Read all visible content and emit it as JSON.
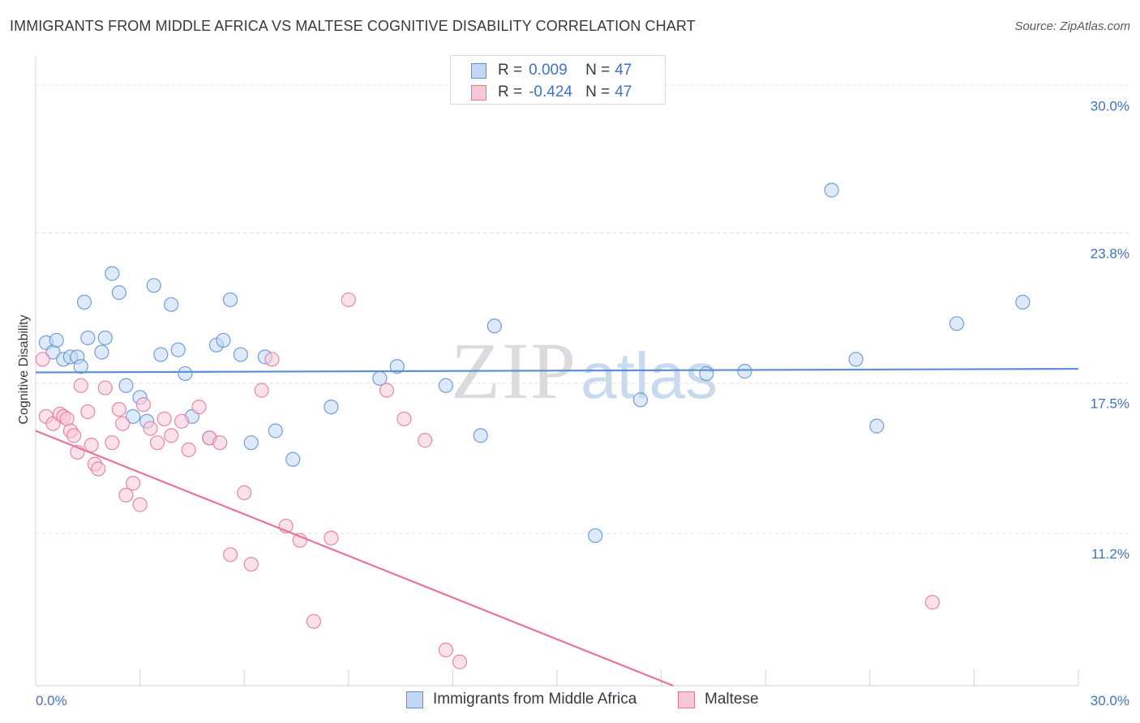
{
  "title": "IMMIGRANTS FROM MIDDLE AFRICA VS MALTESE COGNITIVE DISABILITY CORRELATION CHART",
  "source": "Source: ZipAtlas.com",
  "watermark": {
    "zip": "ZIP",
    "atlas": "atlas"
  },
  "legend_top": {
    "rows": [
      {
        "r_label": "R =",
        "r_value": "0.009",
        "n_label": "N =",
        "n_value": "47",
        "color": "#5b8fd6",
        "fill": "#c3d8f4"
      },
      {
        "r_label": "R =",
        "r_value": "-0.424",
        "n_label": "N =",
        "n_value": "47",
        "color": "#e8739b",
        "fill": "#f8c8d7"
      }
    ]
  },
  "legend_bottom": {
    "items": [
      {
        "label": "Immigrants from Middle Africa",
        "color": "#5b8fd6",
        "fill": "#c3d8f4"
      },
      {
        "label": "Maltese",
        "color": "#e8739b",
        "fill": "#f8c8d7"
      }
    ]
  },
  "chart_data": {
    "type": "scatter",
    "title": "IMMIGRANTS FROM MIDDLE AFRICA VS MALTESE COGNITIVE DISABILITY CORRELATION CHART",
    "xlabel": "",
    "ylabel": "Cognitive Disability",
    "xlim": [
      0,
      30
    ],
    "ylim": [
      4.8,
      31.2
    ],
    "x_tick_labels": [
      "0.0%",
      "30.0%"
    ],
    "y_ticks": [
      11.2,
      17.5,
      23.8,
      30.0
    ],
    "y_tick_labels": [
      "11.2%",
      "17.5%",
      "23.8%",
      "30.0%"
    ],
    "grid": "horizontal dashed",
    "legend_position": "top-center",
    "series": [
      {
        "name": "Immigrants from Middle Africa",
        "color": "#5b8fd6",
        "fill": "#c3d8f4",
        "trend": {
          "x": [
            0,
            30
          ],
          "y": [
            17.95,
            18.1
          ]
        },
        "points": [
          [
            0.3,
            19.2
          ],
          [
            0.5,
            18.8
          ],
          [
            0.6,
            19.3
          ],
          [
            0.8,
            18.5
          ],
          [
            1.0,
            18.6
          ],
          [
            1.2,
            18.6
          ],
          [
            1.3,
            18.2
          ],
          [
            1.4,
            20.9
          ],
          [
            1.5,
            19.4
          ],
          [
            1.9,
            18.8
          ],
          [
            2.0,
            19.4
          ],
          [
            2.2,
            22.1
          ],
          [
            2.4,
            21.3
          ],
          [
            2.6,
            17.4
          ],
          [
            2.8,
            16.1
          ],
          [
            3.0,
            16.9
          ],
          [
            3.2,
            15.9
          ],
          [
            3.4,
            21.6
          ],
          [
            3.6,
            18.7
          ],
          [
            3.9,
            20.8
          ],
          [
            4.1,
            18.9
          ],
          [
            4.3,
            17.9
          ],
          [
            4.5,
            16.1
          ],
          [
            5.0,
            15.2
          ],
          [
            5.2,
            19.1
          ],
          [
            5.4,
            19.3
          ],
          [
            5.6,
            21.0
          ],
          [
            5.9,
            18.7
          ],
          [
            6.2,
            15.0
          ],
          [
            6.6,
            18.6
          ],
          [
            6.9,
            15.5
          ],
          [
            7.4,
            14.3
          ],
          [
            8.5,
            16.5
          ],
          [
            9.9,
            17.7
          ],
          [
            10.4,
            18.2
          ],
          [
            11.8,
            17.4
          ],
          [
            12.8,
            15.3
          ],
          [
            13.2,
            19.9
          ],
          [
            16.1,
            11.1
          ],
          [
            17.4,
            16.8
          ],
          [
            19.3,
            17.9
          ],
          [
            20.4,
            18.0
          ],
          [
            22.9,
            25.6
          ],
          [
            23.6,
            18.5
          ],
          [
            24.2,
            15.7
          ],
          [
            26.5,
            20.0
          ],
          [
            28.4,
            20.9
          ]
        ]
      },
      {
        "name": "Maltese",
        "color": "#e8739b",
        "fill": "#f8c8d7",
        "trend": {
          "x": [
            0,
            30
          ],
          "y": [
            15.5,
            -2.0
          ]
        },
        "points": [
          [
            0.2,
            18.5
          ],
          [
            0.3,
            16.1
          ],
          [
            0.5,
            15.8
          ],
          [
            0.7,
            16.2
          ],
          [
            0.8,
            16.1
          ],
          [
            0.9,
            16.0
          ],
          [
            1.0,
            15.5
          ],
          [
            1.1,
            15.3
          ],
          [
            1.2,
            14.6
          ],
          [
            1.3,
            17.4
          ],
          [
            1.5,
            16.3
          ],
          [
            1.6,
            14.9
          ],
          [
            1.7,
            14.1
          ],
          [
            1.8,
            13.9
          ],
          [
            2.0,
            17.3
          ],
          [
            2.2,
            15.0
          ],
          [
            2.4,
            16.4
          ],
          [
            2.5,
            15.8
          ],
          [
            2.6,
            12.8
          ],
          [
            2.8,
            13.3
          ],
          [
            3.0,
            12.4
          ],
          [
            3.1,
            16.6
          ],
          [
            3.3,
            15.6
          ],
          [
            3.5,
            15.0
          ],
          [
            3.7,
            16.0
          ],
          [
            3.9,
            15.3
          ],
          [
            4.2,
            15.9
          ],
          [
            4.4,
            14.7
          ],
          [
            4.7,
            16.5
          ],
          [
            5.0,
            15.2
          ],
          [
            5.3,
            15.0
          ],
          [
            5.6,
            10.3
          ],
          [
            6.0,
            12.9
          ],
          [
            6.2,
            9.9
          ],
          [
            6.5,
            17.2
          ],
          [
            6.8,
            18.5
          ],
          [
            7.2,
            11.5
          ],
          [
            7.6,
            10.9
          ],
          [
            8.0,
            7.5
          ],
          [
            8.5,
            11.0
          ],
          [
            9.0,
            21.0
          ],
          [
            10.1,
            17.2
          ],
          [
            10.6,
            16.0
          ],
          [
            11.2,
            15.1
          ],
          [
            11.8,
            6.3
          ],
          [
            12.2,
            5.8
          ],
          [
            25.8,
            8.3
          ]
        ]
      }
    ]
  }
}
